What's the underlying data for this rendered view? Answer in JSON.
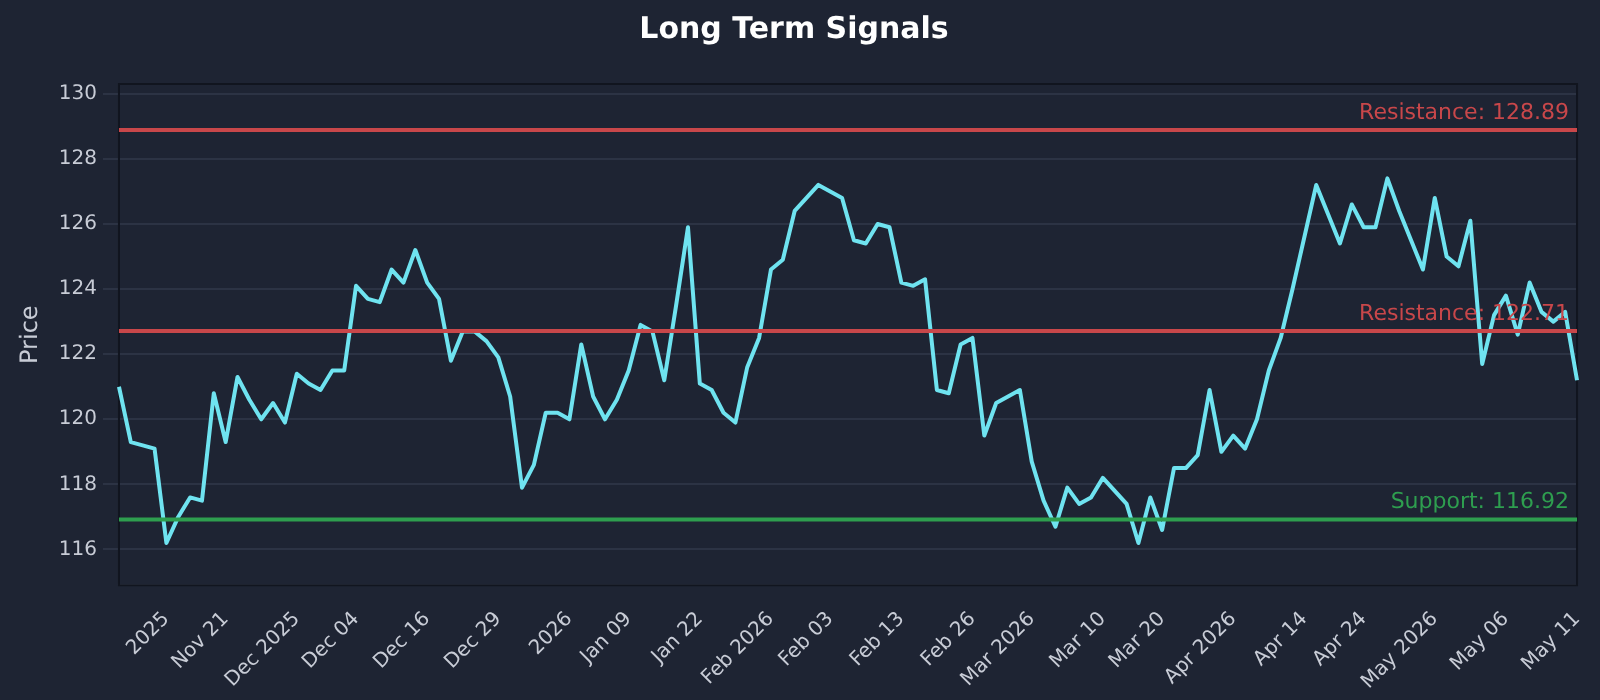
{
  "chart_data": {
    "type": "line",
    "title": "Long Term Signals",
    "ylabel": "Price",
    "categories": [
      null,
      null,
      null,
      null,
      "2025",
      null,
      null,
      null,
      null,
      "Nov 21",
      null,
      null,
      null,
      null,
      null,
      "Dec 2025",
      null,
      null,
      null,
      null,
      "Dec 04",
      null,
      null,
      null,
      null,
      null,
      "Dec 16",
      null,
      null,
      null,
      null,
      null,
      "Dec 29",
      null,
      null,
      null,
      null,
      null,
      "2026",
      null,
      null,
      null,
      null,
      "Jan 09",
      null,
      null,
      null,
      null,
      null,
      "Jan 22",
      null,
      null,
      null,
      null,
      null,
      "Feb 2026",
      null,
      null,
      null,
      null,
      "Feb 03",
      null,
      null,
      null,
      null,
      null,
      "Feb 13",
      null,
      null,
      null,
      null,
      null,
      "Feb 26",
      null,
      null,
      null,
      null,
      "Mar 2026",
      null,
      null,
      null,
      null,
      null,
      "Mar 10",
      null,
      null,
      null,
      null,
      "Mar 20",
      null,
      null,
      null,
      null,
      null,
      "Apr 2026",
      null,
      null,
      null,
      null,
      null,
      "Apr 14",
      null,
      null,
      null,
      null,
      "Apr 24",
      null,
      null,
      null,
      null,
      null,
      "May 2026",
      null,
      null,
      null,
      null,
      null,
      "May 06",
      null,
      null,
      null,
      null,
      null,
      "May 11"
    ],
    "series": [
      {
        "color": "#6fe3f0",
        "values": [
          121.0,
          119.3,
          119.2,
          119.1,
          116.2,
          117.0,
          117.6,
          117.5,
          120.8,
          119.3,
          121.3,
          120.6,
          120.0,
          120.5,
          119.9,
          121.4,
          121.1,
          120.9,
          121.5,
          121.5,
          124.1,
          123.7,
          123.6,
          124.6,
          124.2,
          125.2,
          124.2,
          123.7,
          121.8,
          122.7,
          122.7,
          122.4,
          121.9,
          120.7,
          117.9,
          118.6,
          120.2,
          120.2,
          120.0,
          122.3,
          120.7,
          120.0,
          120.6,
          121.5,
          122.9,
          122.7,
          121.2,
          123.5,
          125.9,
          121.1,
          120.9,
          120.2,
          119.9,
          121.6,
          122.5,
          124.6,
          124.9,
          126.4,
          126.8,
          127.2,
          127.0,
          126.8,
          125.5,
          125.4,
          126.0,
          125.9,
          124.2,
          124.1,
          124.3,
          120.9,
          120.8,
          122.3,
          122.5,
          119.5,
          120.5,
          120.7,
          120.9,
          118.7,
          117.5,
          116.7,
          117.9,
          117.4,
          117.6,
          118.2,
          117.8,
          117.4,
          116.2,
          117.6,
          116.6,
          118.5,
          118.5,
          118.9,
          120.9,
          119.0,
          119.5,
          119.1,
          120.0,
          121.5,
          122.5,
          124.0,
          125.6,
          127.2,
          126.3,
          125.4,
          126.6,
          125.9,
          125.9,
          127.4,
          126.4,
          125.5,
          124.6,
          126.8,
          125.0,
          124.7,
          126.1,
          121.7,
          123.2,
          123.8,
          122.6,
          124.2,
          123.3,
          123.0,
          123.3,
          121.2
        ]
      }
    ],
    "ylim": [
      114.9,
      130.3
    ],
    "yticks": [
      116,
      118,
      120,
      122,
      124,
      126,
      128,
      130
    ],
    "ref_lines": [
      {
        "axis": "y",
        "value": 128.89,
        "label": "Resistance: 128.89",
        "color": "#c8474a"
      },
      {
        "axis": "y",
        "value": 122.71,
        "label": "Resistance: 122.71",
        "color": "#c8474a"
      },
      {
        "axis": "y",
        "value": 116.92,
        "label": "Support: 116.92",
        "color": "#2e9e4f"
      }
    ],
    "grid": "y",
    "legend": false,
    "marker": "none",
    "line_style": "solid"
  }
}
